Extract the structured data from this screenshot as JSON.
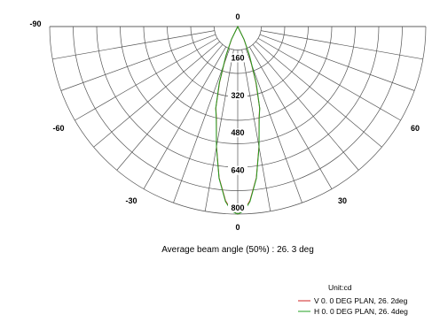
{
  "chart_data": {
    "type": "polar",
    "subtitle": "Average beam angle (50%) : 26. 3 deg",
    "unit_label": "Unit:cd",
    "angle_tick_labels": [
      "-90",
      "-60",
      "-30",
      "0",
      "30",
      "60"
    ],
    "angle_tick_values": [
      -90,
      -60,
      -30,
      0,
      30,
      60
    ],
    "radial_tick_labels": [
      "0",
      "160",
      "320",
      "480",
      "640",
      "800"
    ],
    "radial_tick_values": [
      0,
      160,
      320,
      480,
      640,
      800
    ],
    "rlim": [
      0,
      800
    ],
    "angle_range": [
      -90,
      90
    ],
    "grid": true,
    "legend_position": "bottom-right",
    "colors": {
      "grid": "#555555",
      "V": "#d02020",
      "H": "#20a020"
    },
    "series": [
      {
        "name": "V 0. 0 DEG PLAN, 26. 2deg",
        "color": "#d02020",
        "angles": [
          -26,
          -22,
          -18,
          -15,
          -13.1,
          -10,
          -7,
          -4,
          -2,
          0,
          2,
          4,
          7,
          10,
          13.1,
          15,
          18,
          22,
          26
        ],
        "values": [
          60,
          130,
          250,
          360,
          400,
          520,
          650,
          745,
          785,
          800,
          785,
          745,
          650,
          520,
          400,
          360,
          250,
          130,
          60
        ]
      },
      {
        "name": "H 0. 0 DEG PLAN, 26. 4deg",
        "color": "#20a020",
        "angles": [
          -26,
          -22,
          -18,
          -15,
          -13.2,
          -10,
          -7,
          -4,
          -2,
          0,
          2,
          4,
          7,
          10,
          13.2,
          15,
          18,
          22,
          26
        ],
        "values": [
          62,
          135,
          255,
          362,
          400,
          522,
          652,
          748,
          787,
          800,
          787,
          748,
          652,
          522,
          400,
          362,
          255,
          135,
          62
        ]
      }
    ]
  }
}
